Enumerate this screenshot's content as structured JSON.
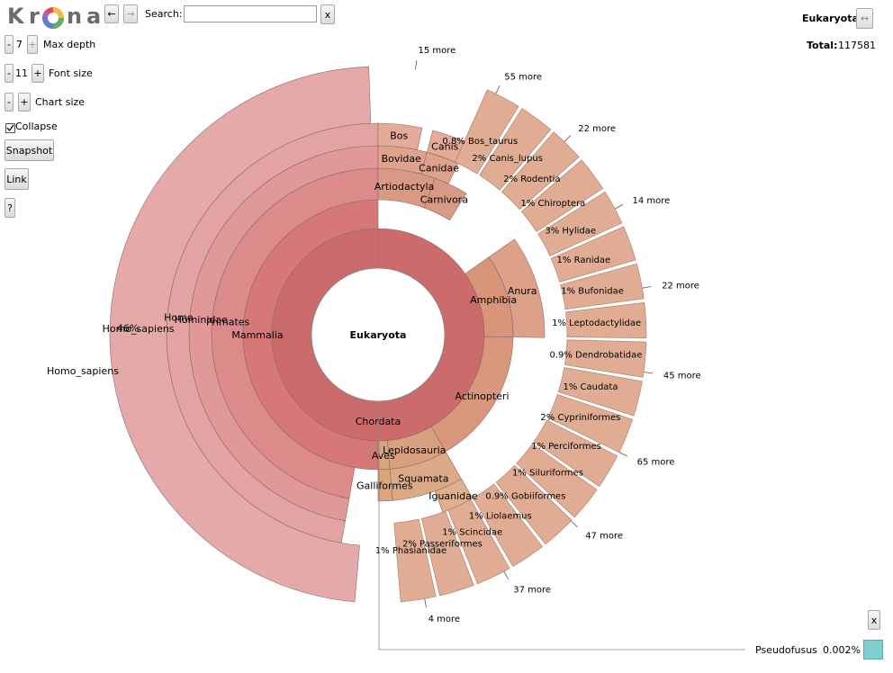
{
  "logo": {
    "letters": [
      "K",
      "r",
      "n",
      "a"
    ]
  },
  "nav": {
    "back_label": "←",
    "forward_label": "→"
  },
  "search": {
    "label": "Search:",
    "value": "",
    "clear_label": "x"
  },
  "controls": {
    "max_depth": {
      "label": "Max depth",
      "value": "7",
      "minus": "-",
      "plus": "+"
    },
    "font_size": {
      "label": "Font size",
      "value": "11",
      "minus": "-",
      "plus": "+"
    },
    "chart_size": {
      "label": "Chart size",
      "minus": "-",
      "plus": "+"
    },
    "collapse": {
      "label": "Collapse",
      "checked": true
    },
    "snapshot_label": "Snapshot",
    "link_label": "Link",
    "help_label": "?"
  },
  "details": {
    "name": "Eukaryota",
    "expand_icon": "↔",
    "total_label": "Total:",
    "total_value": "117581"
  },
  "center_label": "Eukaryota",
  "hidden_item": {
    "name": "Pseudofusus",
    "percent": "0.002%",
    "close_label": "x",
    "swatch_color": "#7fcfcf"
  },
  "chart_data": {
    "type": "sunburst",
    "root": "Eukaryota",
    "segments": [
      {
        "name": "Chordata",
        "ring": 1,
        "start": 0.0,
        "end": 360.0,
        "color": "#cc6b6b"
      },
      {
        "name": "Mammalia",
        "ring": 2,
        "start": 180.0,
        "end": 360.0,
        "color": "#d67878"
      },
      {
        "name": "Amphibia",
        "ring": 2,
        "start": 55.0,
        "end": 91.0,
        "color": "#d8957a"
      },
      {
        "name": "Actinopteri",
        "ring": 2,
        "start": 91.0,
        "end": 150.0,
        "color": "#d9987c"
      },
      {
        "name": "Lepidosauria",
        "ring": 2,
        "start": 150.0,
        "end": 175.0,
        "color": "#d9a07e"
      },
      {
        "name": "Aves",
        "ring": 2,
        "start": 175.0,
        "end": 180.0,
        "color": "#d8a67e"
      },
      {
        "name": "Primates",
        "ring": 3,
        "start": 190.0,
        "end": 360.0,
        "color": "#dc8a8a"
      },
      {
        "name": "Artiodactyla",
        "ring": 3,
        "start": 0.0,
        "end": 20.0,
        "color": "#d99a85"
      },
      {
        "name": "Carnivora",
        "ring": 3,
        "start": 20.0,
        "end": 32.0,
        "color": "#d99a85"
      },
      {
        "name": "Anura",
        "ring": 3,
        "start": 55.0,
        "end": 91.0,
        "color": "#dca188"
      },
      {
        "name": "Squamata",
        "ring": 3,
        "start": 150.0,
        "end": 175.0,
        "color": "#dcaa86"
      },
      {
        "name": "Galliformes",
        "ring": 3,
        "start": 175.0,
        "end": 180.0,
        "color": "#d9a67e"
      },
      {
        "name": "Hominidae",
        "ring": 4,
        "start": 190.0,
        "end": 360.0,
        "color": "#e09898"
      },
      {
        "name": "Bovidae",
        "ring": 4,
        "start": 0.0,
        "end": 15.0,
        "color": "#dea28d"
      },
      {
        "name": "Canidae",
        "ring": 4,
        "start": 15.0,
        "end": 25.0,
        "color": "#dea28d"
      },
      {
        "name": "Iguanidae",
        "ring": 4,
        "start": 150.0,
        "end": 160.0,
        "color": "#dfb08e"
      },
      {
        "name": "Homo",
        "ring": 5,
        "start": 190.0,
        "end": 360.0,
        "color": "#e3a3a3"
      },
      {
        "name": "Bos",
        "ring": 5,
        "start": 0.0,
        "end": 12.0,
        "color": "#e3ab98"
      },
      {
        "name": "Canis",
        "ring": 5,
        "start": 15.0,
        "end": 24.0,
        "color": "#e3ab98"
      },
      {
        "name": "Homo_sapiens",
        "ring": 6,
        "start": 185.0,
        "end": 358.0,
        "color": "#e6a9a9",
        "label": "46%"
      }
    ],
    "outer_labels": [
      {
        "name": "Bos_taurus",
        "value": "0.8%"
      },
      {
        "name": "Canis_lupus",
        "value": "2%"
      },
      {
        "name": "Rodentia",
        "value": "2%"
      },
      {
        "name": "Chiroptera",
        "value": "1%"
      },
      {
        "name": "Hylidae",
        "value": "3%"
      },
      {
        "name": "Ranidae",
        "value": "1%"
      },
      {
        "name": "Bufonidae",
        "value": "1%"
      },
      {
        "name": "Leptodactylidae",
        "value": "1%"
      },
      {
        "name": "Dendrobatidae",
        "value": "0.9%"
      },
      {
        "name": "Caudata",
        "value": "1%"
      },
      {
        "name": "Cypriniformes",
        "value": "2%"
      },
      {
        "name": "Perciformes",
        "value": "1%"
      },
      {
        "name": "Siluriformes",
        "value": "1%"
      },
      {
        "name": "Gobiiformes",
        "value": "0.9%"
      },
      {
        "name": "Liolaemus",
        "value": "1%"
      },
      {
        "name": "Scincidae",
        "value": "1%"
      },
      {
        "name": "Passeriformes",
        "value": "2%"
      },
      {
        "name": "Phasianidae",
        "value": "1%"
      }
    ],
    "more_labels": [
      "15 more",
      "55 more",
      "22 more",
      "14 more",
      "22 more",
      "45 more",
      "65 more",
      "47 more",
      "37 more",
      "4 more"
    ]
  }
}
